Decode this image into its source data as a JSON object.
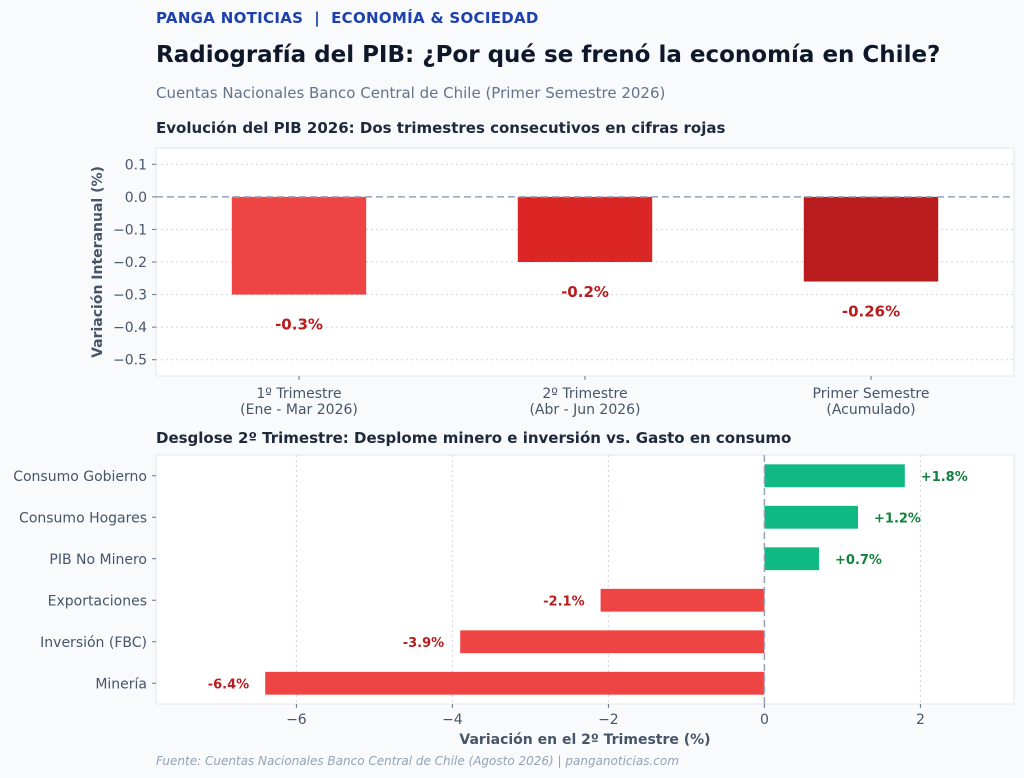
{
  "header": {
    "kicker": "PANGA NOTICIAS  |  ECONOMÍA & SOCIEDAD",
    "title": "Radiografía del PIB: ¿Por qué se frenó la economía en Chile?",
    "subtitle": "Cuentas Nacionales Banco Central de Chile (Primer Semestre 2026)"
  },
  "footer": {
    "source": "Fuente: Cuentas Nacionales Banco Central de Chile (Agosto 2026) | panganoticias.com"
  },
  "colors": {
    "kicker": "#1e40af",
    "negative_label": "#b91c1c",
    "positive_label": "#15803d",
    "positive_bar": "#10b981",
    "negative_bar": "#ef4444",
    "zero_line": "#94a3b8"
  },
  "chart_data": [
    {
      "type": "bar",
      "title": "Evolución del PIB 2026: Dos trimestres consecutivos en cifras rojas",
      "ylabel": "Variación Interanual (%)",
      "xlabel": "",
      "categories": [
        [
          "1º Trimestre",
          "(Ene - Mar 2026)"
        ],
        [
          "2º Trimestre",
          "(Abr - Jun 2026)"
        ],
        [
          "Primer Semestre",
          "(Acumulado)"
        ]
      ],
      "values": [
        -0.3,
        -0.2,
        -0.26
      ],
      "data_labels": [
        "-0.3%",
        "-0.2%",
        "-0.26%"
      ],
      "bar_colors": [
        "#ef4444",
        "#dc2626",
        "#b91c1c"
      ],
      "ylim": [
        -0.55,
        0.15
      ],
      "yticks": [
        0.1,
        0.0,
        -0.1,
        -0.2,
        -0.3,
        -0.4,
        -0.5
      ],
      "ytick_labels": [
        "0.1",
        "0.0",
        "−0.1",
        "−0.2",
        "−0.3",
        "−0.4",
        "−0.5"
      ],
      "grid": true,
      "zero_line": "dashed"
    },
    {
      "type": "bar",
      "orientation": "horizontal",
      "title": "Desglose 2º Trimestre: Desplome minero e inversión vs. Gasto en consumo",
      "xlabel": "Variación en el 2º Trimestre (%)",
      "ylabel": "",
      "categories": [
        "Consumo Gobierno",
        "Consumo Hogares",
        "PIB No Minero",
        "Exportaciones",
        "Inversión (FBC)",
        "Minería"
      ],
      "values": [
        1.8,
        1.2,
        0.7,
        -2.1,
        -3.9,
        -6.4
      ],
      "data_labels": [
        "+1.8%",
        "+1.2%",
        "+0.7%",
        "-2.1%",
        "-3.9%",
        "-6.4%"
      ],
      "xlim": [
        -7.8,
        3.2
      ],
      "xticks": [
        -6,
        -4,
        -2,
        0,
        2
      ],
      "xtick_labels": [
        "−6",
        "−4",
        "−2",
        "0",
        "2"
      ],
      "grid": true,
      "zero_line": "dashed"
    }
  ]
}
